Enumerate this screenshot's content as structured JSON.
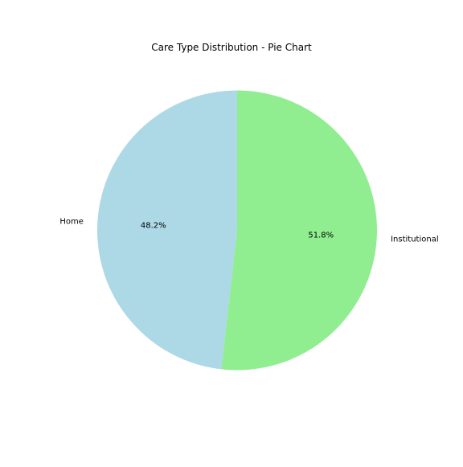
{
  "chart_data": {
    "type": "pie",
    "title": "Care Type Distribution - Pie Chart",
    "categories": [
      "Home",
      "Institutional"
    ],
    "values": [
      48.2,
      51.8
    ],
    "percent_labels": [
      "48.2%",
      "51.8%"
    ],
    "colors": [
      "#add8e6",
      "#90ee90"
    ],
    "start_angle_deg": 90,
    "direction": "counterclockwise",
    "legend": "none"
  }
}
